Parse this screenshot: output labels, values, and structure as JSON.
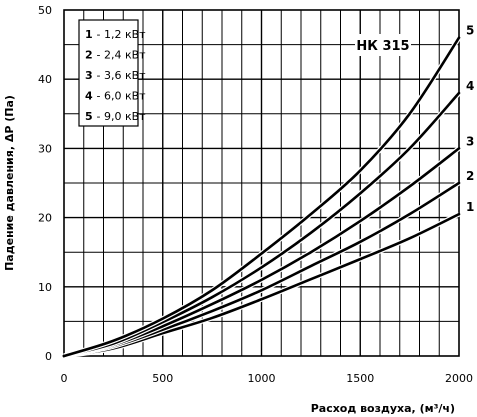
{
  "chart_data": {
    "type": "line",
    "model": "НК 315",
    "xlabel": "Расход воздуха, (м³/ч)",
    "ylabel": "Падение давления, ΔP (Па)",
    "xlim": [
      0,
      2000
    ],
    "ylim": [
      0,
      50
    ],
    "x_ticks": [
      "0",
      "500",
      "1000",
      "1500",
      "2000"
    ],
    "y_ticks": [
      "0",
      "10",
      "20",
      "30",
      "40",
      "50"
    ],
    "grid": true,
    "legend_position": "top-left",
    "legend": [
      {
        "num": "1",
        "text": "- 1,2 кВт"
      },
      {
        "num": "2",
        "text": "- 2,4 кВт"
      },
      {
        "num": "3",
        "text": "- 3,6 кВт"
      },
      {
        "num": "4",
        "text": "- 6,0 кВт"
      },
      {
        "num": "5",
        "text": "- 9,0 кВт"
      }
    ],
    "x": [
      0,
      250,
      500,
      750,
      1000,
      1250,
      1500,
      1750,
      2000
    ],
    "series": [
      {
        "name": "1",
        "values": [
          0,
          1.1,
          3.3,
          5.5,
          8.2,
          11.1,
          14.0,
          17.0,
          20.5
        ]
      },
      {
        "name": "2",
        "values": [
          0,
          1.4,
          3.8,
          6.5,
          9.5,
          13.0,
          16.5,
          20.5,
          25.0
        ]
      },
      {
        "name": "3",
        "values": [
          0,
          1.6,
          4.3,
          7.5,
          11.0,
          15.0,
          19.5,
          24.5,
          30.0
        ]
      },
      {
        "name": "4",
        "values": [
          0,
          1.8,
          4.9,
          8.5,
          12.8,
          17.8,
          23.5,
          30.0,
          38.0
        ]
      },
      {
        "name": "5",
        "values": [
          0,
          2.2,
          5.4,
          9.5,
          14.8,
          20.5,
          26.8,
          35.0,
          46.0
        ]
      }
    ]
  }
}
